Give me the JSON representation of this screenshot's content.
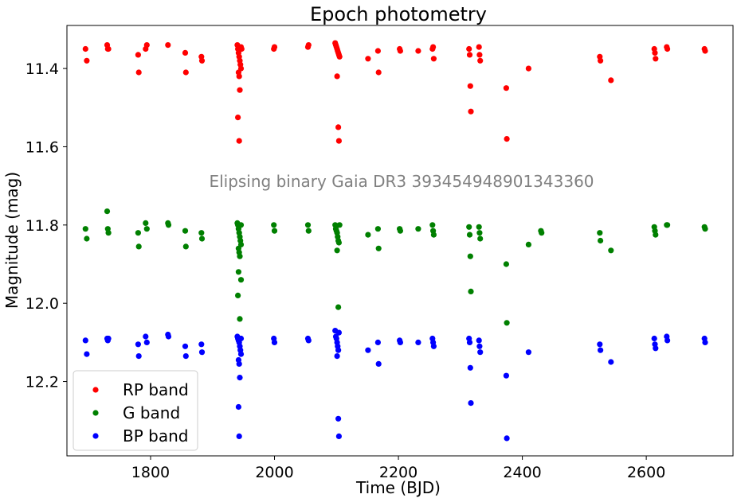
{
  "chart_data": {
    "type": "scatter",
    "title": "Epoch photometry",
    "xlabel": "Time (BJD)",
    "ylabel": "Magnitude (mag)",
    "annotation": "Elipsing binary Gaia DR3 393454948901343360",
    "xlim": [
      1665,
      2740
    ],
    "ylim": [
      12.39,
      11.29
    ],
    "y_inverted": true,
    "x_ticks": [
      1800,
      2000,
      2200,
      2400,
      2600
    ],
    "y_ticks": [
      11.4,
      11.6,
      11.8,
      12.0,
      12.2
    ],
    "y_tick_labels": [
      "11.4",
      "11.6",
      "11.8",
      "12.0",
      "12.2"
    ],
    "grid": false,
    "legend_placement": "lower-left",
    "series": [
      {
        "name": "RP band",
        "color": "#ff0000",
        "points": [
          [
            1695,
            11.35
          ],
          [
            1697,
            11.38
          ],
          [
            1730,
            11.34
          ],
          [
            1731,
            11.35
          ],
          [
            1732,
            11.35
          ],
          [
            1780,
            11.365
          ],
          [
            1781,
            11.41
          ],
          [
            1792,
            11.35
          ],
          [
            1794,
            11.34
          ],
          [
            1828,
            11.34
          ],
          [
            1856,
            11.36
          ],
          [
            1857,
            11.41
          ],
          [
            1882,
            11.37
          ],
          [
            1883,
            11.38
          ],
          [
            1940,
            11.34
          ],
          [
            1941,
            11.35
          ],
          [
            1942,
            11.36
          ],
          [
            1943,
            11.37
          ],
          [
            1944,
            11.38
          ],
          [
            1945,
            11.39
          ],
          [
            1946,
            11.4
          ],
          [
            1942,
            11.41
          ],
          [
            1943,
            11.42
          ],
          [
            1944,
            11.455
          ],
          [
            1941,
            11.525
          ],
          [
            1943,
            11.585
          ],
          [
            1946,
            11.345
          ],
          [
            1947,
            11.35
          ],
          [
            1999,
            11.35
          ],
          [
            2000,
            11.345
          ],
          [
            2054,
            11.345
          ],
          [
            2055,
            11.34
          ],
          [
            2098,
            11.335
          ],
          [
            2099,
            11.34
          ],
          [
            2100,
            11.345
          ],
          [
            2101,
            11.35
          ],
          [
            2102,
            11.355
          ],
          [
            2103,
            11.36
          ],
          [
            2104,
            11.365
          ],
          [
            2105,
            11.37
          ],
          [
            2101,
            11.42
          ],
          [
            2103,
            11.55
          ],
          [
            2104,
            11.585
          ],
          [
            2151,
            11.375
          ],
          [
            2167,
            11.355
          ],
          [
            2168,
            11.41
          ],
          [
            2202,
            11.35
          ],
          [
            2203,
            11.355
          ],
          [
            2232,
            11.355
          ],
          [
            2255,
            11.35
          ],
          [
            2256,
            11.345
          ],
          [
            2257,
            11.375
          ],
          [
            2314,
            11.35
          ],
          [
            2315,
            11.365
          ],
          [
            2316,
            11.445
          ],
          [
            2317,
            11.51
          ],
          [
            2330,
            11.345
          ],
          [
            2331,
            11.365
          ],
          [
            2332,
            11.38
          ],
          [
            2374,
            11.45
          ],
          [
            2375,
            11.58
          ],
          [
            2410,
            11.4
          ],
          [
            2525,
            11.37
          ],
          [
            2526,
            11.38
          ],
          [
            2543,
            11.43
          ],
          [
            2613,
            11.35
          ],
          [
            2614,
            11.36
          ],
          [
            2615,
            11.375
          ],
          [
            2633,
            11.345
          ],
          [
            2634,
            11.35
          ],
          [
            2694,
            11.35
          ],
          [
            2695,
            11.355
          ]
        ]
      },
      {
        "name": "G band",
        "color": "#008000",
        "points": [
          [
            1695,
            11.81
          ],
          [
            1697,
            11.835
          ],
          [
            1730,
            11.765
          ],
          [
            1731,
            11.81
          ],
          [
            1732,
            11.82
          ],
          [
            1780,
            11.82
          ],
          [
            1781,
            11.855
          ],
          [
            1792,
            11.795
          ],
          [
            1794,
            11.81
          ],
          [
            1828,
            11.795
          ],
          [
            1829,
            11.8
          ],
          [
            1856,
            11.815
          ],
          [
            1857,
            11.855
          ],
          [
            1882,
            11.82
          ],
          [
            1883,
            11.835
          ],
          [
            1940,
            11.795
          ],
          [
            1941,
            11.8
          ],
          [
            1942,
            11.81
          ],
          [
            1943,
            11.82
          ],
          [
            1944,
            11.83
          ],
          [
            1945,
            11.84
          ],
          [
            1946,
            11.85
          ],
          [
            1942,
            11.86
          ],
          [
            1943,
            11.87
          ],
          [
            1944,
            11.88
          ],
          [
            1942,
            11.92
          ],
          [
            1946,
            11.94
          ],
          [
            1941,
            11.98
          ],
          [
            1944,
            12.04
          ],
          [
            1946,
            11.8
          ],
          [
            1999,
            11.8
          ],
          [
            2000,
            11.815
          ],
          [
            2054,
            11.8
          ],
          [
            2055,
            11.815
          ],
          [
            2098,
            11.8
          ],
          [
            2099,
            11.81
          ],
          [
            2100,
            11.815
          ],
          [
            2101,
            11.82
          ],
          [
            2102,
            11.83
          ],
          [
            2103,
            11.84
          ],
          [
            2104,
            11.845
          ],
          [
            2101,
            11.865
          ],
          [
            2103,
            12.01
          ],
          [
            2105,
            11.8
          ],
          [
            2151,
            11.825
          ],
          [
            2167,
            11.81
          ],
          [
            2168,
            11.86
          ],
          [
            2202,
            11.81
          ],
          [
            2203,
            11.815
          ],
          [
            2232,
            11.81
          ],
          [
            2255,
            11.8
          ],
          [
            2256,
            11.815
          ],
          [
            2257,
            11.825
          ],
          [
            2314,
            11.805
          ],
          [
            2315,
            11.825
          ],
          [
            2316,
            11.88
          ],
          [
            2317,
            11.97
          ],
          [
            2330,
            11.805
          ],
          [
            2331,
            11.82
          ],
          [
            2332,
            11.835
          ],
          [
            2374,
            11.9
          ],
          [
            2375,
            12.05
          ],
          [
            2410,
            11.85
          ],
          [
            2430,
            11.815
          ],
          [
            2431,
            11.82
          ],
          [
            2525,
            11.82
          ],
          [
            2526,
            11.84
          ],
          [
            2543,
            11.865
          ],
          [
            2613,
            11.805
          ],
          [
            2614,
            11.815
          ],
          [
            2615,
            11.825
          ],
          [
            2633,
            11.8
          ],
          [
            2634,
            11.8
          ],
          [
            2694,
            11.805
          ],
          [
            2695,
            11.81
          ]
        ]
      },
      {
        "name": "BP band",
        "color": "#0000ff",
        "points": [
          [
            1695,
            12.095
          ],
          [
            1697,
            12.13
          ],
          [
            1730,
            12.09
          ],
          [
            1731,
            12.095
          ],
          [
            1732,
            12.09
          ],
          [
            1780,
            12.105
          ],
          [
            1781,
            12.135
          ],
          [
            1792,
            12.085
          ],
          [
            1794,
            12.1
          ],
          [
            1828,
            12.08
          ],
          [
            1829,
            12.085
          ],
          [
            1856,
            12.11
          ],
          [
            1857,
            12.135
          ],
          [
            1882,
            12.105
          ],
          [
            1883,
            12.125
          ],
          [
            1940,
            12.085
          ],
          [
            1941,
            12.09
          ],
          [
            1942,
            12.095
          ],
          [
            1943,
            12.1
          ],
          [
            1944,
            12.11
          ],
          [
            1945,
            12.12
          ],
          [
            1946,
            12.13
          ],
          [
            1942,
            12.145
          ],
          [
            1943,
            12.155
          ],
          [
            1944,
            12.19
          ],
          [
            1942,
            12.265
          ],
          [
            1943,
            12.34
          ],
          [
            1946,
            12.09
          ],
          [
            1999,
            12.09
          ],
          [
            2000,
            12.1
          ],
          [
            2054,
            12.09
          ],
          [
            2055,
            12.095
          ],
          [
            2098,
            12.07
          ],
          [
            2099,
            12.085
          ],
          [
            2100,
            12.09
          ],
          [
            2101,
            12.1
          ],
          [
            2102,
            12.11
          ],
          [
            2103,
            12.12
          ],
          [
            2104,
            12.075
          ],
          [
            2101,
            12.135
          ],
          [
            2103,
            12.295
          ],
          [
            2104,
            12.34
          ],
          [
            2151,
            12.12
          ],
          [
            2167,
            12.1
          ],
          [
            2168,
            12.155
          ],
          [
            2202,
            12.095
          ],
          [
            2203,
            12.1
          ],
          [
            2232,
            12.1
          ],
          [
            2255,
            12.09
          ],
          [
            2256,
            12.1
          ],
          [
            2257,
            12.11
          ],
          [
            2314,
            12.09
          ],
          [
            2315,
            12.1
          ],
          [
            2316,
            12.165
          ],
          [
            2317,
            12.255
          ],
          [
            2330,
            12.095
          ],
          [
            2331,
            12.11
          ],
          [
            2332,
            12.125
          ],
          [
            2374,
            12.185
          ],
          [
            2375,
            12.345
          ],
          [
            2410,
            12.125
          ],
          [
            2525,
            12.105
          ],
          [
            2526,
            12.12
          ],
          [
            2543,
            12.15
          ],
          [
            2613,
            12.09
          ],
          [
            2614,
            12.105
          ],
          [
            2615,
            12.115
          ],
          [
            2633,
            12.085
          ],
          [
            2634,
            12.095
          ],
          [
            2694,
            12.09
          ],
          [
            2695,
            12.1
          ]
        ]
      }
    ]
  }
}
